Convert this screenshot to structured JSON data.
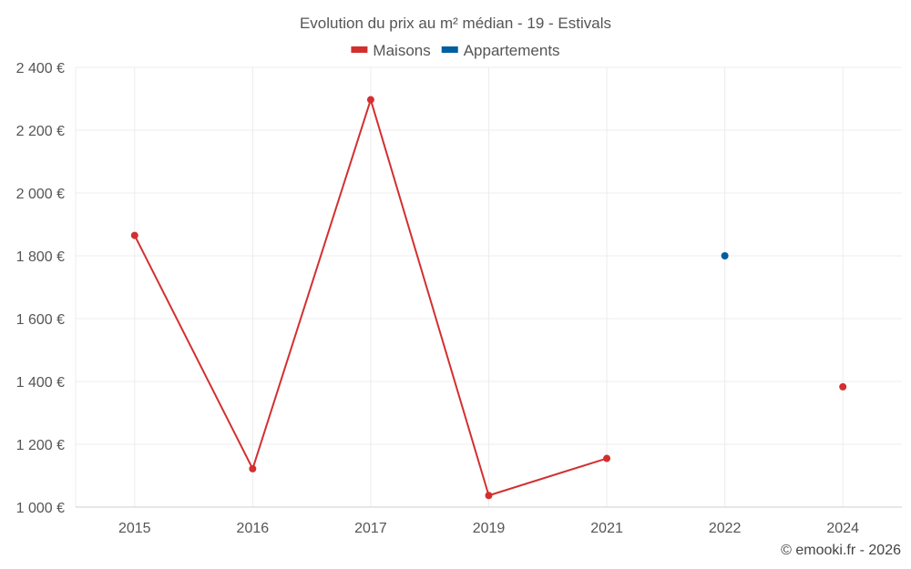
{
  "chart_data": {
    "type": "line",
    "title": "Evolution du prix au m² médian - 19 - Estivals",
    "categories": [
      "2015",
      "2016",
      "2017",
      "2019",
      "2021",
      "2022",
      "2024"
    ],
    "series": [
      {
        "name": "Maisons",
        "color": "#d32f2f",
        "values": [
          1865,
          1122,
          2297,
          1037,
          1155,
          null,
          1383
        ]
      },
      {
        "name": "Appartements",
        "color": "#005f9e",
        "values": [
          null,
          null,
          null,
          null,
          null,
          1800,
          null
        ]
      }
    ],
    "ylim": [
      1000,
      2400
    ],
    "yticks": [
      "1 000 €",
      "1 200 €",
      "1 400 €",
      "1 600 €",
      "1 800 €",
      "2 000 €",
      "2 200 €",
      "2 400 €"
    ],
    "grid": true,
    "legend_position": "top-center"
  },
  "credit": "© emooki.fr - 2026"
}
